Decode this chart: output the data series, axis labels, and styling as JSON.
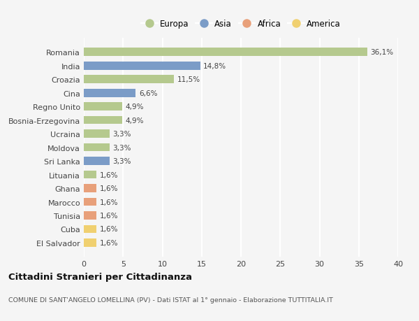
{
  "countries": [
    "Romania",
    "India",
    "Croazia",
    "Cina",
    "Regno Unito",
    "Bosnia-Erzegovina",
    "Ucraina",
    "Moldova",
    "Sri Lanka",
    "Lituania",
    "Ghana",
    "Marocco",
    "Tunisia",
    "Cuba",
    "El Salvador"
  ],
  "values": [
    36.1,
    14.8,
    11.5,
    6.6,
    4.9,
    4.9,
    3.3,
    3.3,
    3.3,
    1.6,
    1.6,
    1.6,
    1.6,
    1.6,
    1.6
  ],
  "labels": [
    "36,1%",
    "14,8%",
    "11,5%",
    "6,6%",
    "4,9%",
    "4,9%",
    "3,3%",
    "3,3%",
    "3,3%",
    "1,6%",
    "1,6%",
    "1,6%",
    "1,6%",
    "1,6%",
    "1,6%"
  ],
  "continents": [
    "Europa",
    "Asia",
    "Europa",
    "Asia",
    "Europa",
    "Europa",
    "Europa",
    "Europa",
    "Asia",
    "Europa",
    "Africa",
    "Africa",
    "Africa",
    "America",
    "America"
  ],
  "continent_colors": {
    "Europa": "#b5c98e",
    "Asia": "#7b9cc7",
    "Africa": "#e8a07a",
    "America": "#f0d070"
  },
  "legend_order": [
    "Europa",
    "Asia",
    "Africa",
    "America"
  ],
  "xlim": [
    0,
    40
  ],
  "xticks": [
    0,
    5,
    10,
    15,
    20,
    25,
    30,
    35,
    40
  ],
  "title": "Cittadini Stranieri per Cittadinanza",
  "subtitle": "COMUNE DI SANT'ANGELO LOMELLINA (PV) - Dati ISTAT al 1° gennaio - Elaborazione TUTTITALIA.IT",
  "bg_color": "#f5f5f5",
  "grid_color": "#ffffff",
  "bar_height": 0.6
}
